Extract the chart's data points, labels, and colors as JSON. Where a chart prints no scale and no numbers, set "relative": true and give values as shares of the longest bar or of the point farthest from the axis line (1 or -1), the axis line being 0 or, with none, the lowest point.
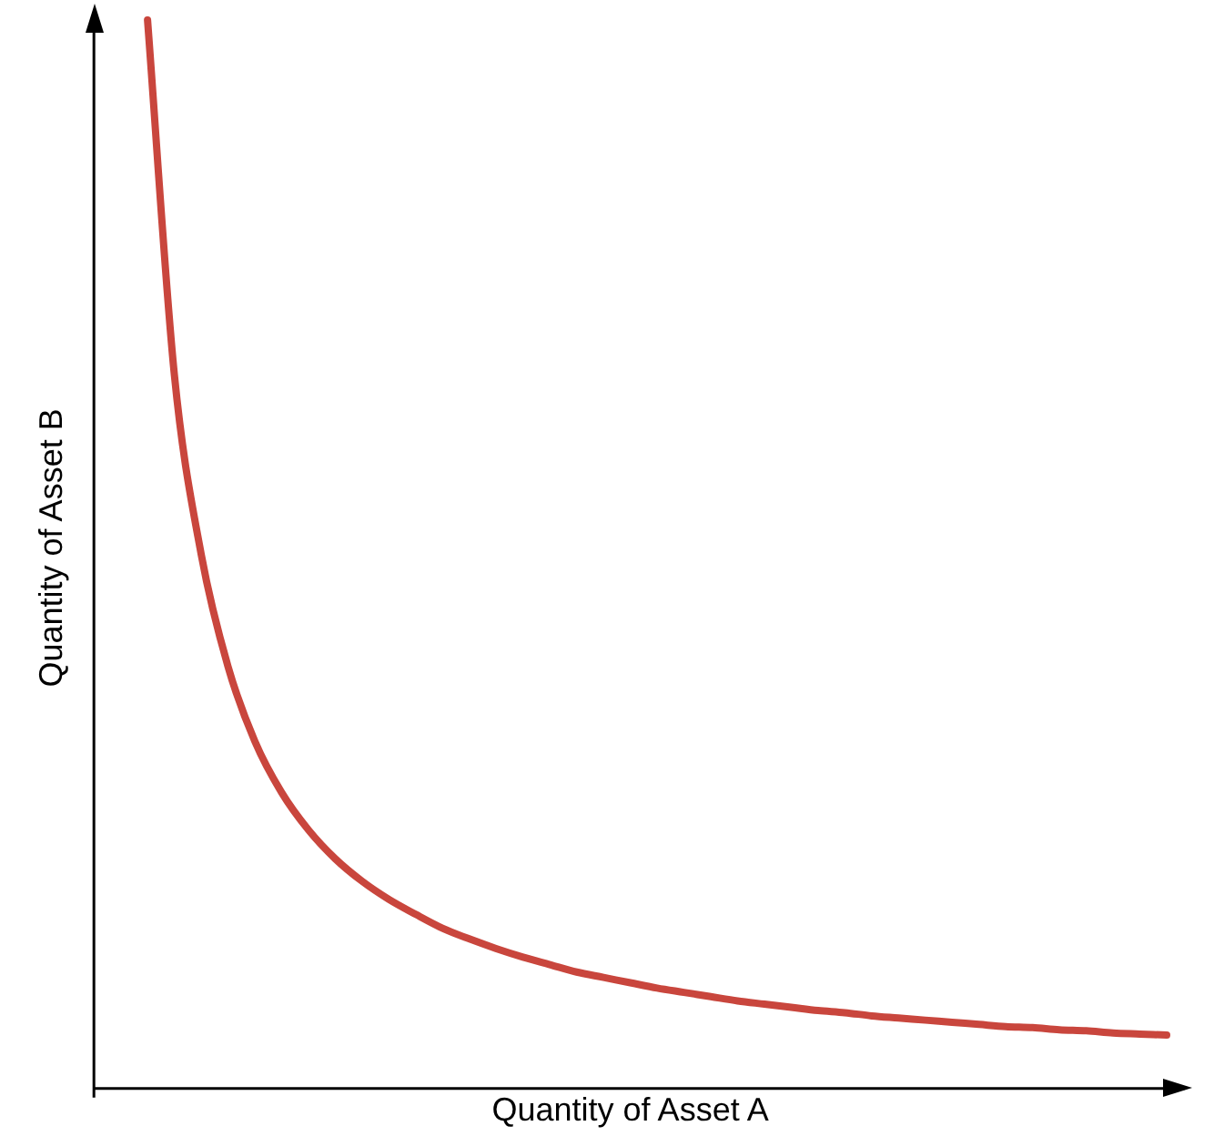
{
  "chart_data": {
    "type": "line",
    "relative": true,
    "xlabel": "Quantity of Asset A",
    "ylabel": "Quantity of Asset B",
    "tick_labels": false,
    "marker": "none",
    "categories": [
      null,
      null,
      null,
      null,
      null,
      null,
      null,
      null,
      null,
      null,
      null,
      null,
      null,
      null,
      null,
      null,
      null,
      null,
      null,
      null,
      null,
      null,
      null,
      null,
      null,
      null,
      null,
      null,
      null,
      null,
      null,
      null,
      null,
      null,
      null,
      null,
      null,
      null,
      null,
      null,
      null
    ],
    "series": [
      {
        "color": "#c9463d",
        "values": [
          null,
          null,
          1,
          0.668,
          0.5,
          0.395,
          0.325,
          0.277,
          0.242,
          0.215,
          0.194,
          0.177,
          0.163,
          0.15,
          0.14,
          0.131,
          0.123,
          0.116,
          0.109,
          0.104,
          0.099,
          0.094,
          0.09,
          0.086,
          0.082,
          0.079,
          0.076,
          0.073,
          0.071,
          0.068,
          0.066,
          0.064,
          0.062,
          0.06,
          0.058,
          0.057,
          0.055,
          0.054,
          0.052,
          0.051,
          0.05
        ]
      }
    ]
  }
}
